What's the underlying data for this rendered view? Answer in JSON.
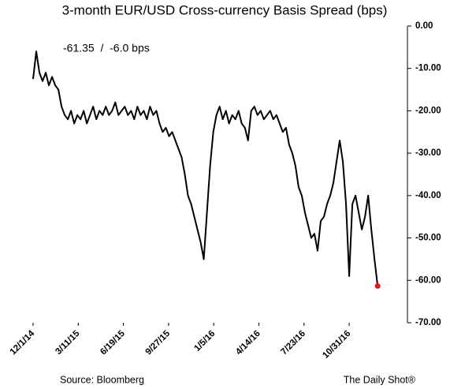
{
  "chart_data": {
    "type": "line",
    "title": "3-month EUR/USD Cross-currency Basis Spread (bps)",
    "annotation": "-61.35  /  -6.0 bps",
    "source": "Source: Bloomberg",
    "credit": "The Daily Shot®",
    "xlim": [
      "2014-12-01",
      "2017-03-09"
    ],
    "xticks": [
      {
        "value": "2014-12-01",
        "label": "12/1/14"
      },
      {
        "value": "2015-03-11",
        "label": "3/11/15"
      },
      {
        "value": "2015-06-19",
        "label": "6/19/15"
      },
      {
        "value": "2015-09-27",
        "label": "9/27/15"
      },
      {
        "value": "2016-01-05",
        "label": "1/5/16"
      },
      {
        "value": "2016-04-14",
        "label": "4/14/16"
      },
      {
        "value": "2016-07-23",
        "label": "7/23/16"
      },
      {
        "value": "2016-10-31",
        "label": "10/31/16"
      }
    ],
    "ylim": [
      -70,
      0
    ],
    "yticks": [
      {
        "value": 0,
        "label": "0.00"
      },
      {
        "value": -10,
        "label": "-10.00"
      },
      {
        "value": -20,
        "label": "-20.00"
      },
      {
        "value": -30,
        "label": "-30.00"
      },
      {
        "value": -40,
        "label": "-40.00"
      },
      {
        "value": -50,
        "label": "-50.00"
      },
      {
        "value": -60,
        "label": "-60.00"
      },
      {
        "value": -70,
        "label": "-70.00"
      }
    ],
    "y_axis_side": "right",
    "grid": false,
    "highlight_color": "#e8141b",
    "x": [
      "2014-12-01",
      "2014-12-08",
      "2014-12-15",
      "2014-12-22",
      "2014-12-29",
      "2015-01-05",
      "2015-01-12",
      "2015-01-19",
      "2015-01-26",
      "2015-02-02",
      "2015-02-09",
      "2015-02-16",
      "2015-02-23",
      "2015-03-02",
      "2015-03-09",
      "2015-03-16",
      "2015-03-23",
      "2015-03-30",
      "2015-04-06",
      "2015-04-13",
      "2015-04-20",
      "2015-04-27",
      "2015-05-04",
      "2015-05-11",
      "2015-05-18",
      "2015-05-25",
      "2015-06-01",
      "2015-06-08",
      "2015-06-15",
      "2015-06-22",
      "2015-06-29",
      "2015-07-06",
      "2015-07-13",
      "2015-07-20",
      "2015-07-27",
      "2015-08-03",
      "2015-08-10",
      "2015-08-17",
      "2015-08-24",
      "2015-08-31",
      "2015-09-07",
      "2015-09-14",
      "2015-09-21",
      "2015-09-28",
      "2015-10-05",
      "2015-10-12",
      "2015-10-19",
      "2015-10-26",
      "2015-11-02",
      "2015-11-09",
      "2015-11-16",
      "2015-11-23",
      "2015-11-30",
      "2015-12-07",
      "2015-12-14",
      "2015-12-21",
      "2015-12-28",
      "2016-01-04",
      "2016-01-11",
      "2016-01-18",
      "2016-01-25",
      "2016-02-01",
      "2016-02-08",
      "2016-02-15",
      "2016-02-22",
      "2016-02-29",
      "2016-03-07",
      "2016-03-14",
      "2016-03-21",
      "2016-03-28",
      "2016-04-04",
      "2016-04-11",
      "2016-04-18",
      "2016-04-25",
      "2016-05-02",
      "2016-05-09",
      "2016-05-16",
      "2016-05-23",
      "2016-05-30",
      "2016-06-06",
      "2016-06-13",
      "2016-06-20",
      "2016-06-27",
      "2016-07-04",
      "2016-07-11",
      "2016-07-18",
      "2016-07-25",
      "2016-08-01",
      "2016-08-08",
      "2016-08-15",
      "2016-08-22",
      "2016-08-29",
      "2016-09-05",
      "2016-09-12",
      "2016-09-19",
      "2016-09-26",
      "2016-10-03",
      "2016-10-10",
      "2016-10-17",
      "2016-10-24",
      "2016-10-31",
      "2016-11-07",
      "2016-11-14",
      "2016-11-21",
      "2016-11-28",
      "2016-12-05",
      "2016-12-12",
      "2016-12-19",
      "2016-12-26",
      "2017-01-02"
    ],
    "series": [
      {
        "color": "#000000",
        "values": [
          -12.5,
          -6,
          -11,
          -13,
          -11,
          -14,
          -12,
          -14,
          -15,
          -19,
          -21,
          -22,
          -20,
          -23,
          -21,
          -22,
          -20,
          -23,
          -21,
          -19,
          -22,
          -20,
          -21,
          -19,
          -21,
          -20,
          -18,
          -21,
          -20,
          -19,
          -21,
          -20,
          -22,
          -19,
          -21,
          -20,
          -22,
          -19,
          -21,
          -20,
          -23,
          -25,
          -24,
          -26,
          -25,
          -27,
          -29,
          -31,
          -35,
          -40,
          -42,
          -45,
          -48,
          -51,
          -55,
          -44,
          -33,
          -25,
          -21,
          -19,
          -22,
          -20,
          -23,
          -21,
          -22,
          -20,
          -23,
          -24,
          -27,
          -20,
          -19,
          -21,
          -20,
          -22,
          -21,
          -20,
          -22,
          -21,
          -23,
          -25,
          -24,
          -28,
          -30,
          -33,
          -38,
          -40,
          -44,
          -47,
          -50,
          -49,
          -53,
          -46,
          -45,
          -42,
          -40,
          -37,
          -32,
          -27,
          -32,
          -42,
          -59,
          -42,
          -40,
          -44,
          -48,
          -45,
          -40,
          -48,
          -55,
          -61.35
        ]
      }
    ]
  }
}
